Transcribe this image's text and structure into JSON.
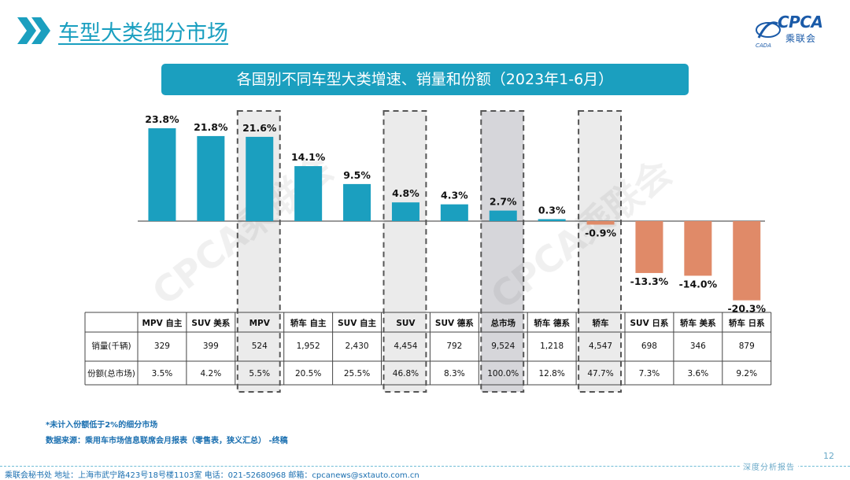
{
  "page_title": "车型大类细分市场",
  "logo": {
    "main": "CPCA",
    "sub": "乘联会"
  },
  "banner": "各国别不同车型大类增速、销量和份额（2023年1-6月）",
  "chart_data": {
    "type": "bar",
    "title": "各国别不同车型大类增速、销量和份额（2023年1-6月）",
    "categories": [
      "MPV 自主",
      "SUV 美系",
      "MPV",
      "轿车 自主",
      "SUV 自主",
      "SUV",
      "SUV 德系",
      "总市场",
      "轿车 德系",
      "轿车",
      "SUV 日系",
      "轿车 美系",
      "轿车 日系"
    ],
    "values": [
      23.8,
      21.8,
      21.6,
      14.1,
      9.5,
      4.8,
      4.3,
      2.7,
      0.3,
      -0.9,
      -13.3,
      -14.0,
      -20.3
    ],
    "value_labels": [
      "23.8%",
      "21.8%",
      "21.6%",
      "14.1%",
      "9.5%",
      "4.8%",
      "4.3%",
      "2.7%",
      "0.3%",
      "-0.9%",
      "-13.3%",
      "-14.0%",
      "-20.3%"
    ],
    "ylim": [
      -21,
      24
    ],
    "highlighted": [
      "MPV",
      "SUV",
      "总市场",
      "轿车"
    ],
    "colors": {
      "positive": "#1b9fbf",
      "negative": "#e08a68",
      "highlight_fill": "#ebebeb",
      "total_fill": "#d6d6da",
      "dash": "#555555"
    }
  },
  "table": {
    "row_headers": [
      "销量(千辆)",
      "份额(总市场)"
    ],
    "sales": [
      "329",
      "399",
      "524",
      "1,952",
      "2,430",
      "4,454",
      "792",
      "9,524",
      "1,218",
      "4,547",
      "698",
      "346",
      "879"
    ],
    "share": [
      "3.5%",
      "4.2%",
      "5.5%",
      "20.5%",
      "25.5%",
      "46.8%",
      "8.3%",
      "100.0%",
      "12.8%",
      "47.7%",
      "7.3%",
      "3.6%",
      "9.2%"
    ]
  },
  "notes": {
    "note1": "*未计入份额低于2%的细分市场",
    "note2": "数据来源：乘用车市场信息联席会月报表（零售表，狭义汇总） -终稿"
  },
  "footer": {
    "text": "乘联会秘书处   地址：上海市武宁路423号18号楼1103室  电话：021-52680968   邮箱：cpcanews@sxtauto.com.cn",
    "tagline": "深度分析报告",
    "page": "12"
  }
}
